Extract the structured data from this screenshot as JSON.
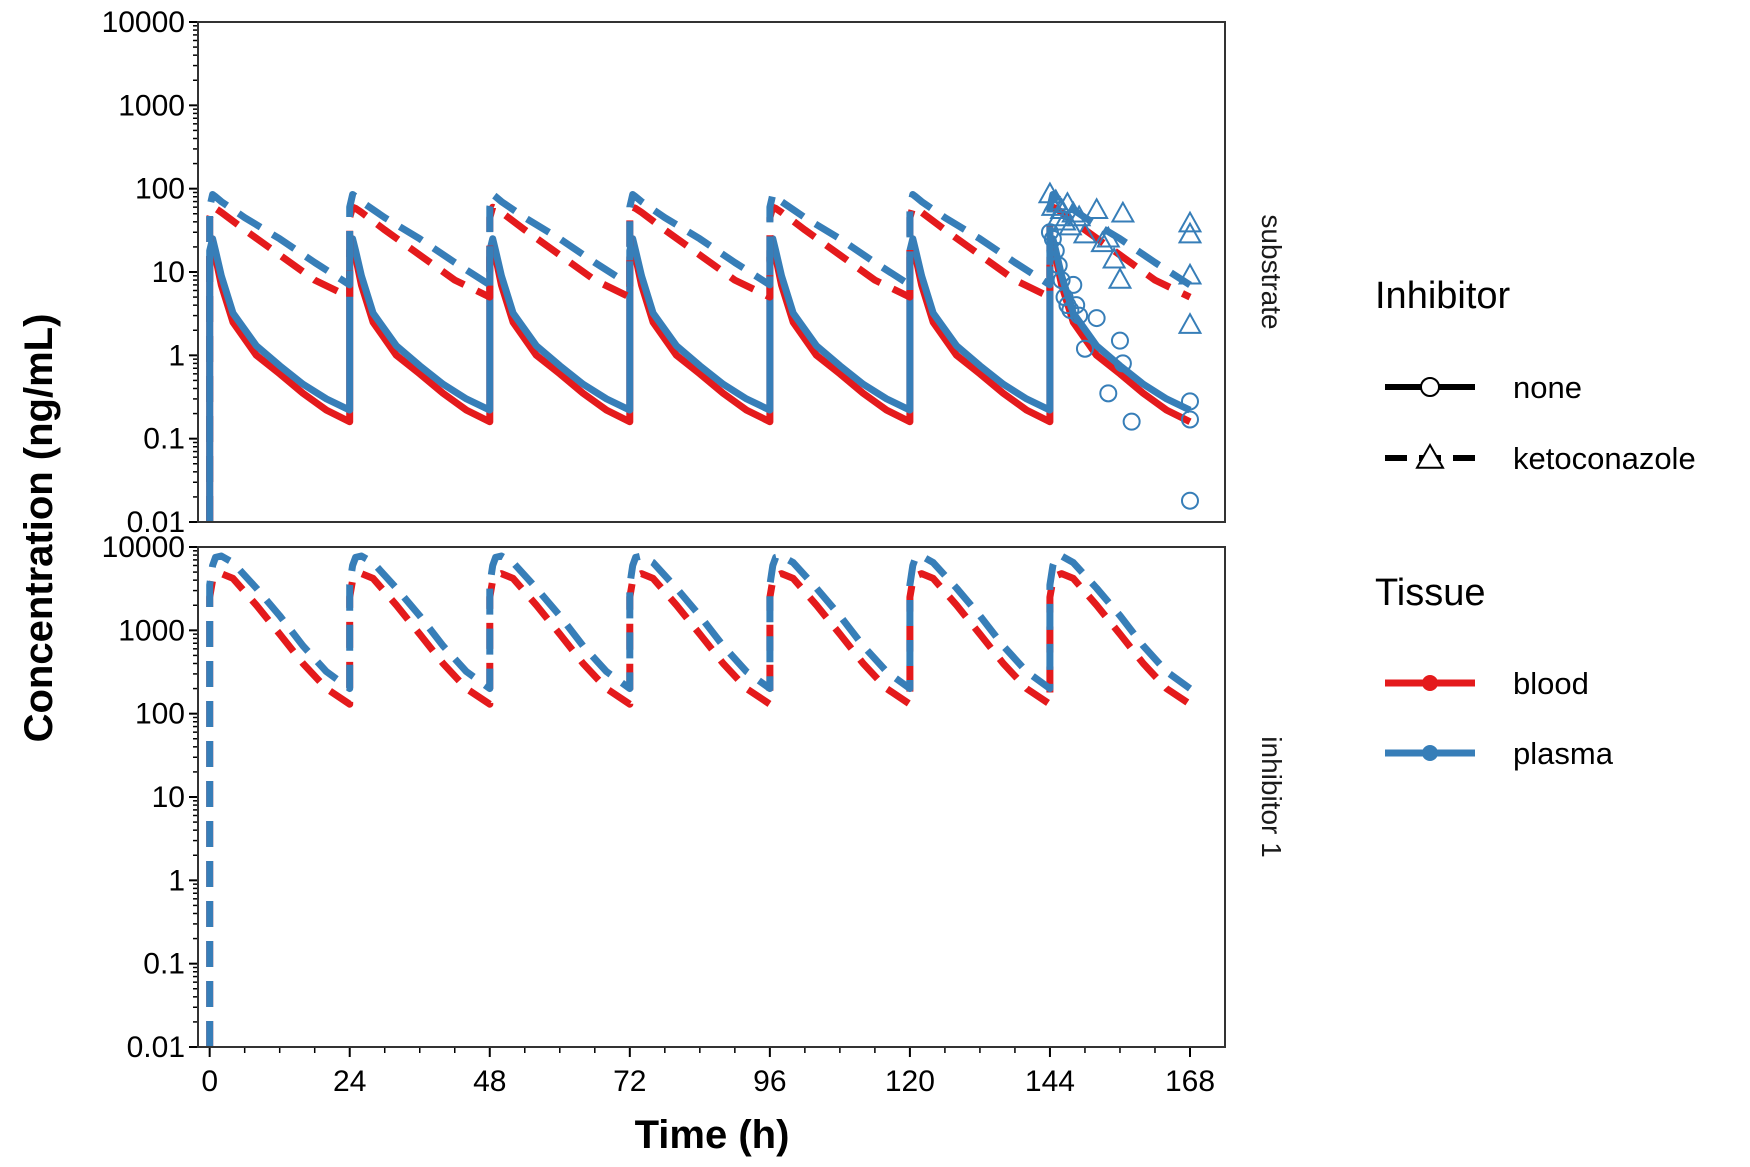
{
  "chart_data": {
    "type": "line",
    "ylabel": "Concentration (ng/mL)",
    "xlabel": "Time (h)",
    "x_ticks": [
      "0",
      "24",
      "48",
      "72",
      "96",
      "120",
      "144",
      "168"
    ],
    "y_ticks": [
      "0.01",
      "0.1",
      "1",
      "10",
      "100",
      "1000",
      "10000"
    ],
    "y_scale": "log",
    "ylim": [
      0.01,
      10000
    ],
    "xlim": [
      -2,
      174
    ],
    "grid": false,
    "dose_interval_h": 24,
    "colors": {
      "blood": "#e41a1c",
      "plasma": "#377eb8"
    },
    "panels": [
      {
        "strip": "substrate",
        "series": [
          {
            "tissue": "blood",
            "inhibitor": "none",
            "style": "solid",
            "x": [
              0,
              0.5,
              1,
              2,
              4,
              8,
              12,
              16,
              20,
              24
            ],
            "y": [
              15,
              20,
              15,
              7,
              2.5,
              1.0,
              0.6,
              0.35,
              0.22,
              0.16
            ]
          },
          {
            "tissue": "plasma",
            "inhibitor": "none",
            "style": "solid",
            "x": [
              0,
              0.5,
              1,
              2,
              4,
              8,
              12,
              16,
              20,
              24
            ],
            "y": [
              18,
              25,
              18,
              9,
              3.2,
              1.3,
              0.75,
              0.45,
              0.3,
              0.22
            ]
          },
          {
            "tissue": "blood",
            "inhibitor": "ketoconazole",
            "style": "dashed",
            "x": [
              0,
              0.5,
              1,
              2,
              6,
              12,
              18,
              24
            ],
            "y": [
              45,
              60,
              58,
              52,
              32,
              16,
              8,
              5
            ]
          },
          {
            "tissue": "plasma",
            "inhibitor": "ketoconazole",
            "style": "dashed",
            "x": [
              0,
              0.5,
              1,
              2,
              6,
              12,
              18,
              24
            ],
            "y": [
              60,
              85,
              80,
              70,
              45,
              25,
              13,
              7
            ]
          }
        ],
        "observed": [
          {
            "inhibitor": "none",
            "marker": "circle",
            "x": [
              144,
              144.5,
              145,
              145.5,
              146,
              146.5,
              147,
              147.5,
              148,
              148.5,
              149,
              150,
              152,
              154,
              156,
              156.5,
              158,
              168,
              168,
              168
            ],
            "y": [
              30,
              25,
              18,
              12,
              8,
              5,
              4,
              3.5,
              7,
              4,
              3,
              1.2,
              2.8,
              0.35,
              1.5,
              0.8,
              0.16,
              0.28,
              0.17,
              0.018
            ]
          },
          {
            "inhibitor": "ketoconazole",
            "marker": "triangle",
            "x": [
              144,
              144.5,
              145,
              145.5,
              146,
              146.5,
              147,
              147.5,
              148,
              149,
              150,
              152,
              153,
              154,
              155,
              156,
              156.5,
              168,
              168,
              168,
              168
            ],
            "y": [
              85,
              60,
              70,
              45,
              55,
              40,
              65,
              35,
              50,
              45,
              28,
              55,
              22,
              25,
              14,
              8,
              50,
              38,
              28,
              9,
              2.3
            ]
          }
        ]
      },
      {
        "strip": "inhibitor 1",
        "series": [
          {
            "tissue": "blood",
            "inhibitor": "ketoconazole",
            "style": "dashed",
            "x": [
              0,
              0.5,
              1,
              2,
              4,
              8,
              12,
              16,
              20,
              24
            ],
            "y": [
              2500,
              4000,
              4500,
              4800,
              4200,
              2000,
              900,
              400,
              200,
              130
            ]
          },
          {
            "tissue": "plasma",
            "inhibitor": "ketoconazole",
            "style": "dashed",
            "x": [
              0,
              0.5,
              1,
              2,
              4,
              8,
              12,
              16,
              20,
              24
            ],
            "y": [
              3500,
              6000,
              7500,
              7800,
              6500,
              3200,
              1500,
              650,
              320,
              200
            ]
          }
        ]
      }
    ],
    "legend": [
      {
        "title": "Inhibitor",
        "entries": [
          {
            "label": "none",
            "style": "solid",
            "marker": "circle"
          },
          {
            "label": "ketoconazole",
            "style": "dashed",
            "marker": "triangle"
          }
        ]
      },
      {
        "title": "Tissue",
        "entries": [
          {
            "label": "blood",
            "color": "#e41a1c"
          },
          {
            "label": "plasma",
            "color": "#377eb8"
          }
        ]
      }
    ],
    "legend_position": "right"
  }
}
